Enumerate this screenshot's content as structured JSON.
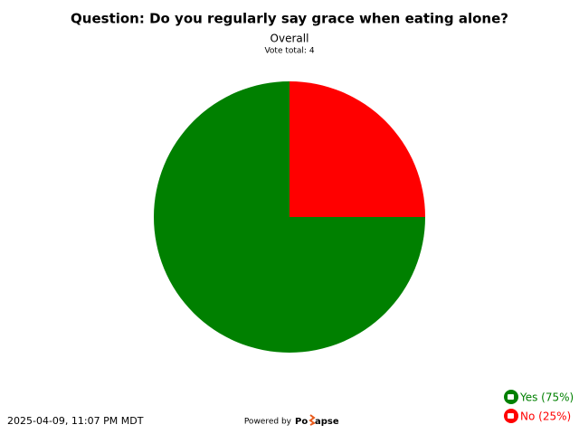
{
  "chart_data": {
    "type": "pie",
    "title": "Question: Do you regularly say grace when eating alone?",
    "subtitle": "Overall",
    "note": "Vote total: 4",
    "values": [
      75,
      25
    ],
    "value_labels": [
      "Yes (75%)",
      "No (25%)"
    ],
    "colors": [
      "#008000",
      "#ff0000"
    ],
    "legend": "bottom-right"
  },
  "footer": {
    "timestamp": "2025-04-09, 11:07 PM MDT",
    "powered_by": "Powered by",
    "brand_start": "Po",
    "brand_end": "apse"
  }
}
